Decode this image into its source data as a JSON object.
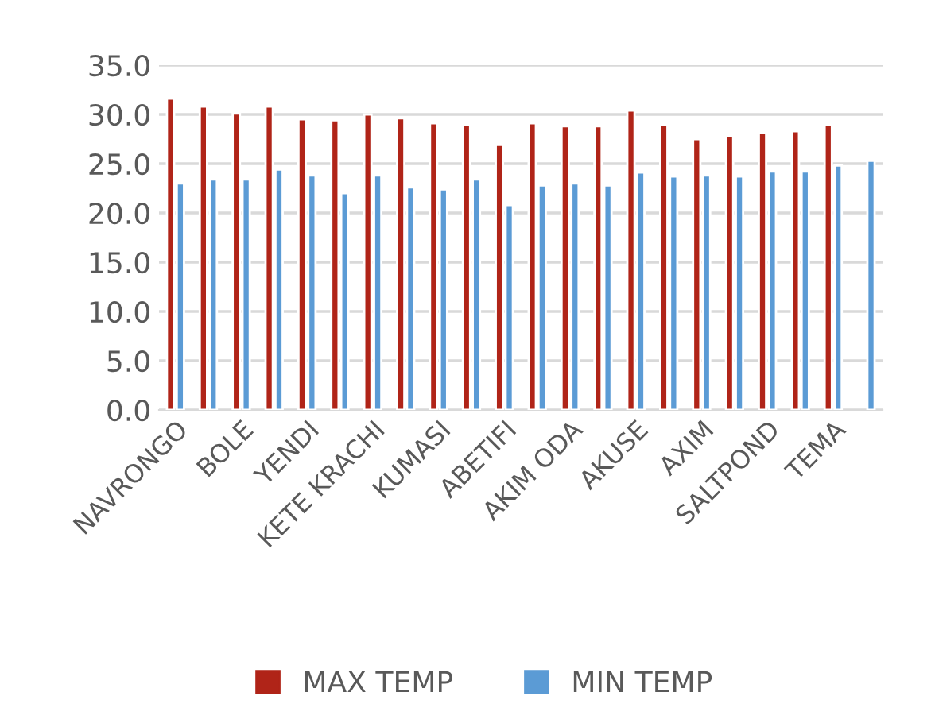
{
  "chart_data": {
    "type": "bar",
    "categories": [
      "NAVRONGO",
      null,
      "BOLE",
      null,
      "YENDI",
      null,
      "KETE KRACHI",
      null,
      "KUMASI",
      null,
      "ABETIFI",
      null,
      "AKIM ODA",
      null,
      "AKUSE",
      null,
      "AXIM",
      null,
      "SALTPOND",
      null,
      "TEMA",
      null
    ],
    "series": [
      {
        "name": "MAX TEMP",
        "color": "#b02418",
        "values": [
          31.6,
          30.8,
          30.1,
          30.8,
          29.5,
          29.4,
          30.0,
          29.6,
          29.1,
          28.9,
          26.9,
          29.1,
          28.8,
          28.8,
          30.4,
          28.9,
          27.5,
          27.8,
          28.1,
          28.3,
          28.9,
          null
        ]
      },
      {
        "name": "MIN TEMP",
        "color": "#5b9bd5",
        "values": [
          23.0,
          23.4,
          23.4,
          24.4,
          23.8,
          22.0,
          23.8,
          22.6,
          22.4,
          23.4,
          20.8,
          22.8,
          23.0,
          22.8,
          24.1,
          23.7,
          23.8,
          23.7,
          24.2,
          24.2,
          24.8,
          25.3
        ]
      }
    ],
    "ylim": [
      0,
      35
    ],
    "yticks": [
      {
        "value": 0,
        "label": "0.0"
      },
      {
        "value": 5,
        "label": "5.0"
      },
      {
        "value": 10,
        "label": "10.0"
      },
      {
        "value": 15,
        "label": "15.0"
      },
      {
        "value": 20,
        "label": "20.0"
      },
      {
        "value": 25,
        "label": "25.0"
      },
      {
        "value": 30,
        "label": "30.0"
      },
      {
        "value": 35,
        "label": "35.0"
      }
    ],
    "grid": "y",
    "legend": "bottom"
  }
}
